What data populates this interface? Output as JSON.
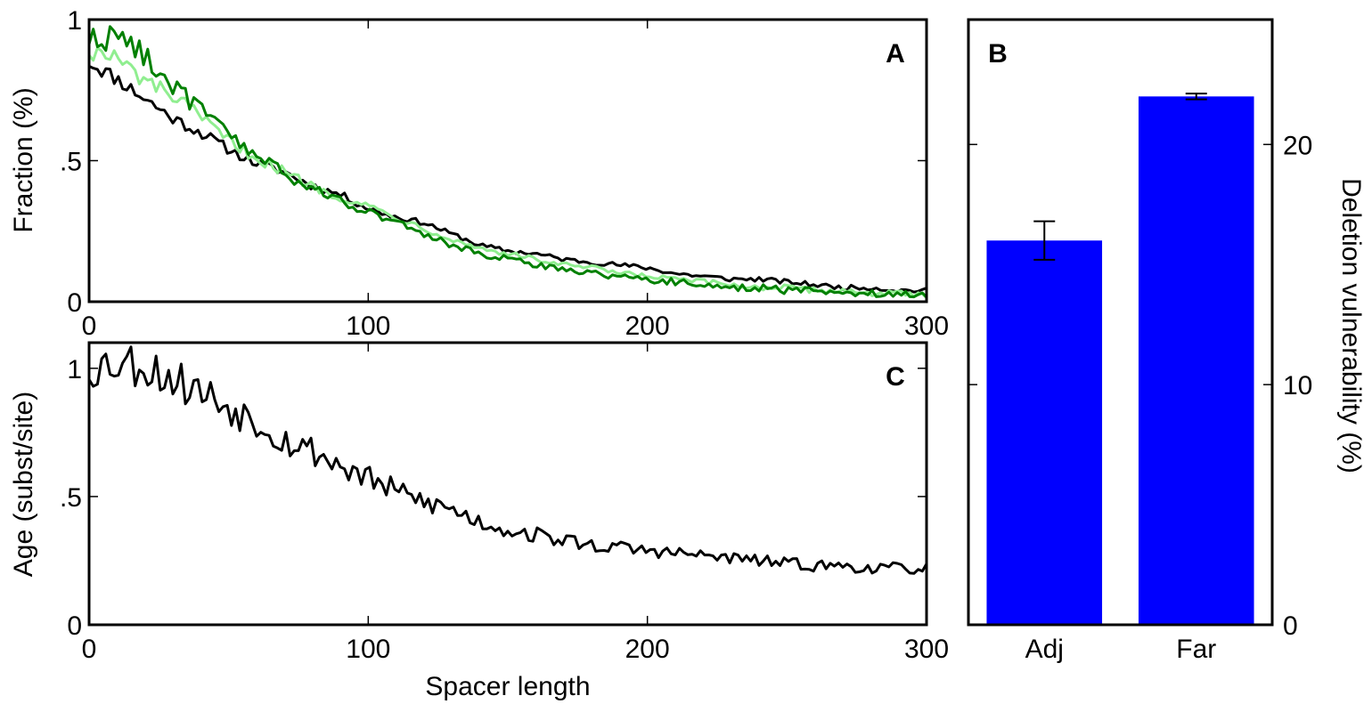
{
  "chart_data": [
    {
      "panel": "A",
      "type": "line",
      "xlabel": "",
      "ylabel": "Fraction (%)",
      "xlim": [
        0,
        300
      ],
      "ylim": [
        0,
        1
      ],
      "xticks": [
        0,
        100,
        200,
        300
      ],
      "xtick_labels": [
        "0",
        "100",
        "200",
        "300"
      ],
      "yticks": [
        0,
        0.5,
        1
      ],
      "ytick_labels": [
        "0",
        ".5",
        "1"
      ],
      "series": [
        {
          "color": "#000000",
          "x": [
            0,
            10,
            20,
            30,
            40,
            50,
            60,
            70,
            80,
            90,
            100,
            110,
            120,
            130,
            140,
            150,
            160,
            170,
            180,
            190,
            200,
            210,
            220,
            230,
            240,
            250,
            260,
            270,
            280,
            290,
            300
          ],
          "y": [
            0.85,
            0.79,
            0.72,
            0.65,
            0.6,
            0.54,
            0.49,
            0.46,
            0.41,
            0.38,
            0.33,
            0.3,
            0.28,
            0.24,
            0.2,
            0.18,
            0.17,
            0.15,
            0.14,
            0.13,
            0.12,
            0.1,
            0.09,
            0.08,
            0.08,
            0.07,
            0.06,
            0.05,
            0.05,
            0.04,
            0.04
          ]
        },
        {
          "color": "#90ee90",
          "x": [
            0,
            10,
            20,
            30,
            40,
            50,
            60,
            70,
            80,
            90,
            100,
            110,
            120,
            130,
            140,
            150,
            160,
            170,
            180,
            190,
            200,
            210,
            220,
            230,
            240,
            250,
            260,
            270,
            280,
            290,
            300
          ],
          "y": [
            0.89,
            0.86,
            0.78,
            0.73,
            0.65,
            0.57,
            0.51,
            0.46,
            0.41,
            0.37,
            0.34,
            0.3,
            0.26,
            0.22,
            0.19,
            0.17,
            0.15,
            0.13,
            0.12,
            0.1,
            0.09,
            0.08,
            0.07,
            0.06,
            0.05,
            0.05,
            0.04,
            0.04,
            0.03,
            0.03,
            0.02
          ]
        },
        {
          "color": "#008000",
          "x": [
            0,
            10,
            20,
            30,
            40,
            50,
            60,
            70,
            80,
            90,
            100,
            110,
            120,
            130,
            140,
            150,
            160,
            170,
            180,
            190,
            200,
            210,
            220,
            230,
            240,
            250,
            260,
            270,
            280,
            290,
            300
          ],
          "y": [
            0.93,
            0.94,
            0.88,
            0.76,
            0.68,
            0.59,
            0.52,
            0.45,
            0.4,
            0.36,
            0.32,
            0.28,
            0.24,
            0.2,
            0.17,
            0.15,
            0.13,
            0.12,
            0.1,
            0.09,
            0.08,
            0.07,
            0.06,
            0.05,
            0.05,
            0.04,
            0.04,
            0.03,
            0.03,
            0.03,
            0.02
          ]
        }
      ]
    },
    {
      "panel": "C",
      "type": "line",
      "xlabel": "Spacer length",
      "ylabel": "Age (subst/site)",
      "xlim": [
        0,
        300
      ],
      "ylim": [
        0,
        1.1
      ],
      "xticks": [
        0,
        100,
        200,
        300
      ],
      "xtick_labels": [
        "0",
        "100",
        "200",
        "300"
      ],
      "yticks": [
        0,
        0.5,
        1
      ],
      "ytick_labels": [
        "0",
        ".5",
        "1"
      ],
      "series": [
        {
          "color": "#000000",
          "x": [
            0,
            10,
            20,
            30,
            40,
            50,
            60,
            70,
            80,
            90,
            100,
            110,
            120,
            130,
            140,
            150,
            160,
            170,
            180,
            190,
            200,
            210,
            220,
            230,
            240,
            250,
            260,
            270,
            280,
            290,
            300
          ],
          "y": [
            1.0,
            1.03,
            1.01,
            0.96,
            0.91,
            0.85,
            0.8,
            0.72,
            0.68,
            0.62,
            0.57,
            0.52,
            0.48,
            0.45,
            0.4,
            0.37,
            0.35,
            0.33,
            0.31,
            0.3,
            0.29,
            0.28,
            0.27,
            0.26,
            0.25,
            0.24,
            0.23,
            0.23,
            0.22,
            0.22,
            0.22
          ]
        }
      ]
    },
    {
      "panel": "B",
      "type": "bar",
      "categories": [
        "Adj",
        "Far"
      ],
      "values": [
        16.0,
        22.0
      ],
      "errors": [
        0.8,
        0.12
      ],
      "color": "#0000ff",
      "ylabel": "Deletion vulnerability (%)",
      "ylim": [
        0,
        25.2
      ],
      "yticks": [
        0,
        10,
        20
      ],
      "ytick_labels": [
        "0",
        "10",
        "20"
      ],
      "yaxis_side": "right"
    }
  ],
  "panel_labels": {
    "a": "A",
    "b": "B",
    "c": "C"
  }
}
